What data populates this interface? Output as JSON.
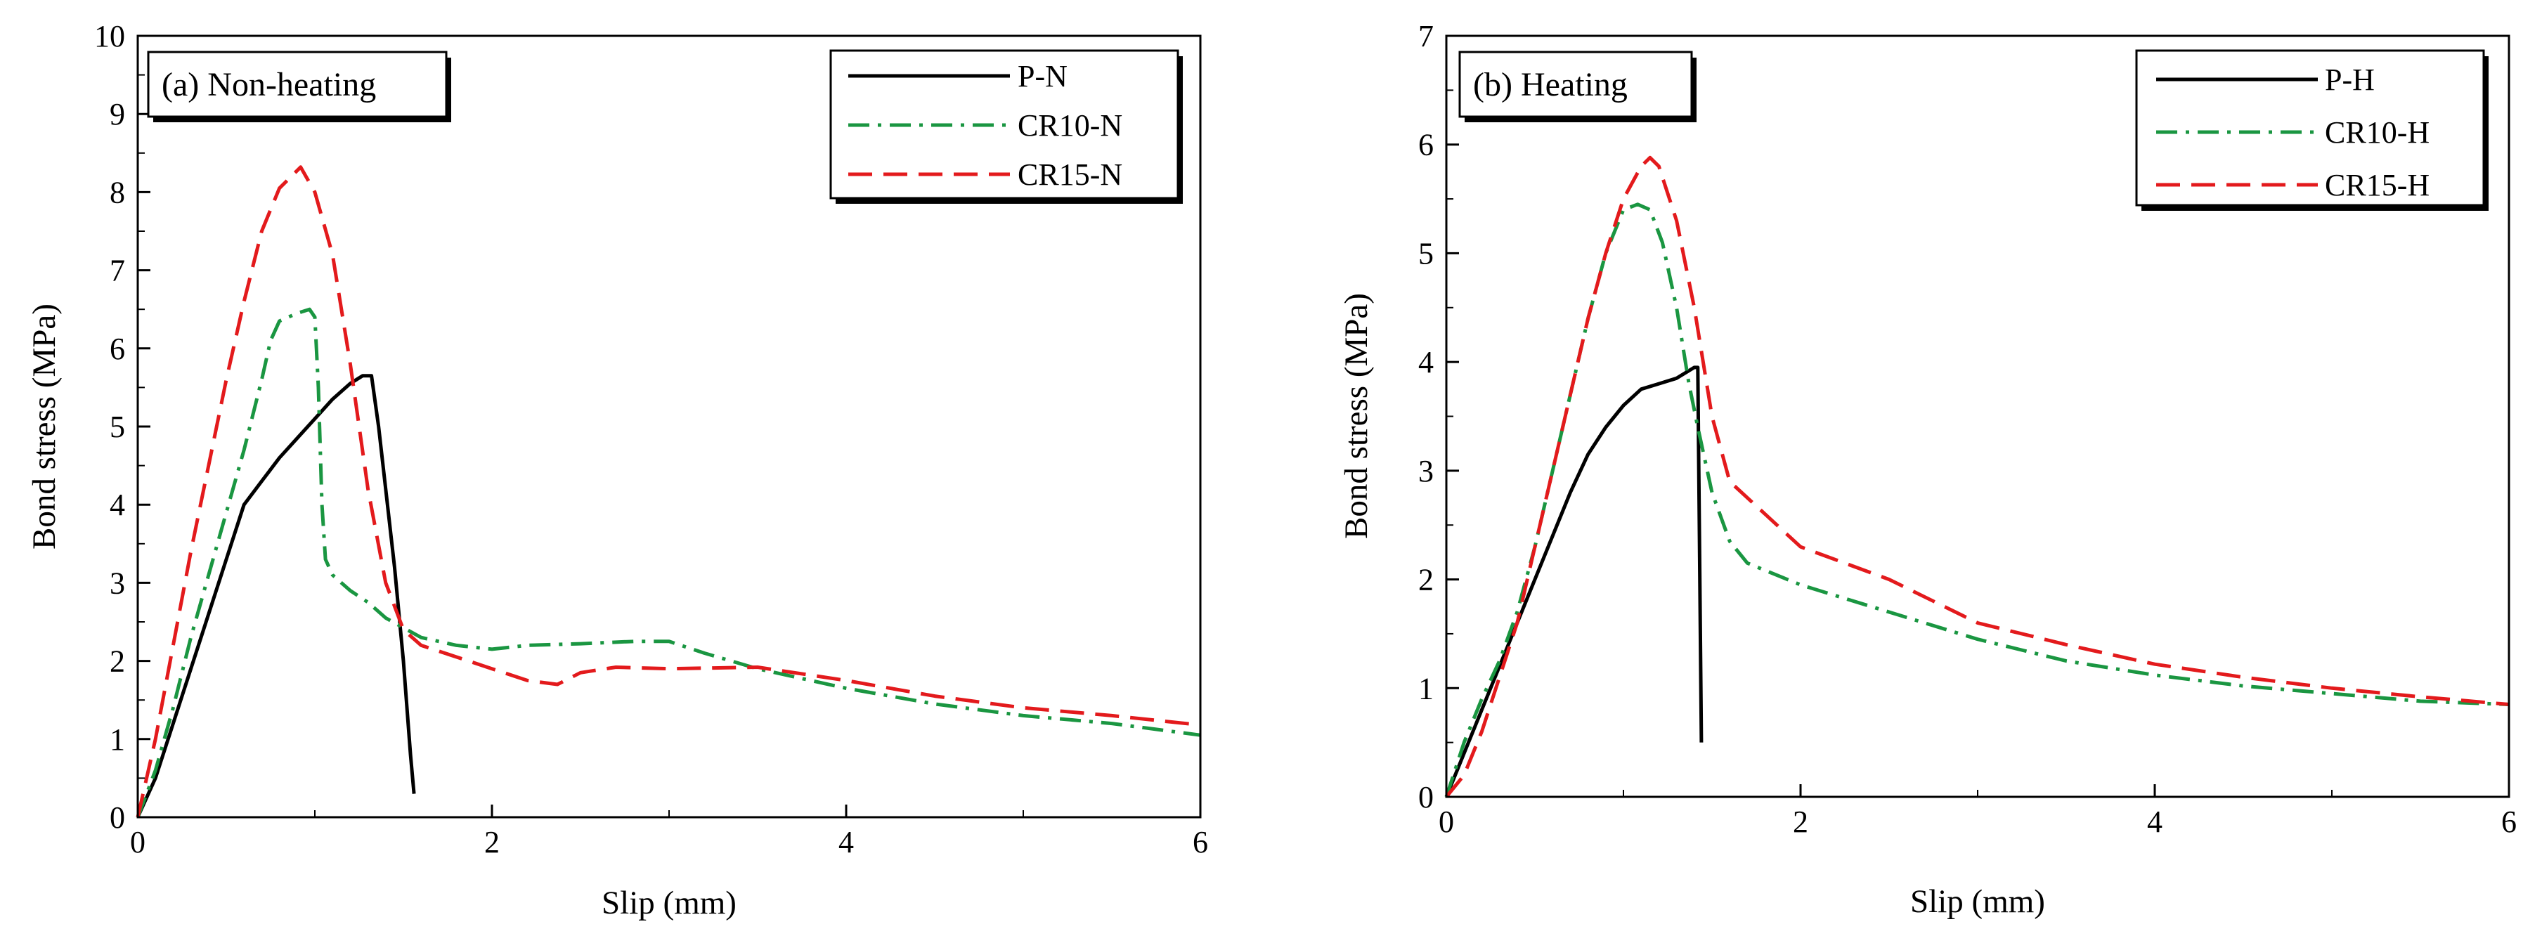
{
  "chart_data": [
    {
      "type": "line",
      "panel_label": "(a) Non-heating",
      "xlabel": "Slip (mm)",
      "ylabel": "Bond stress (MPa)",
      "xlim": [
        0,
        6
      ],
      "ylim": [
        0,
        10
      ],
      "xticks": [
        0,
        2,
        4,
        6
      ],
      "yticks": [
        0,
        1,
        2,
        3,
        4,
        5,
        6,
        7,
        8,
        9,
        10
      ],
      "legend_position": "top-right",
      "series": [
        {
          "name": "P-N",
          "color": "#000000",
          "style": "solid",
          "points": [
            [
              0,
              0
            ],
            [
              0.1,
              0.5
            ],
            [
              0.2,
              1.2
            ],
            [
              0.3,
              1.9
            ],
            [
              0.4,
              2.6
            ],
            [
              0.5,
              3.3
            ],
            [
              0.6,
              4.0
            ],
            [
              0.7,
              4.3
            ],
            [
              0.8,
              4.6
            ],
            [
              0.9,
              4.85
            ],
            [
              1.0,
              5.1
            ],
            [
              1.1,
              5.35
            ],
            [
              1.2,
              5.55
            ],
            [
              1.27,
              5.65
            ],
            [
              1.32,
              5.65
            ],
            [
              1.36,
              5.0
            ],
            [
              1.4,
              4.2
            ],
            [
              1.45,
              3.2
            ],
            [
              1.5,
              2.0
            ],
            [
              1.54,
              0.8
            ],
            [
              1.56,
              0.3
            ]
          ]
        },
        {
          "name": "CR10-N",
          "color": "#1a9641",
          "style": "dashdot",
          "points": [
            [
              0,
              0
            ],
            [
              0.1,
              0.6
            ],
            [
              0.2,
              1.4
            ],
            [
              0.3,
              2.3
            ],
            [
              0.4,
              3.1
            ],
            [
              0.5,
              3.9
            ],
            [
              0.6,
              4.7
            ],
            [
              0.7,
              5.6
            ],
            [
              0.75,
              6.1
            ],
            [
              0.8,
              6.35
            ],
            [
              0.9,
              6.45
            ],
            [
              0.97,
              6.5
            ],
            [
              1.0,
              6.4
            ],
            [
              1.02,
              5.5
            ],
            [
              1.04,
              4.0
            ],
            [
              1.06,
              3.3
            ],
            [
              1.1,
              3.1
            ],
            [
              1.2,
              2.9
            ],
            [
              1.3,
              2.75
            ],
            [
              1.4,
              2.55
            ],
            [
              1.6,
              2.3
            ],
            [
              1.8,
              2.2
            ],
            [
              2.0,
              2.15
            ],
            [
              2.2,
              2.2
            ],
            [
              2.5,
              2.22
            ],
            [
              2.8,
              2.25
            ],
            [
              3.0,
              2.25
            ],
            [
              3.2,
              2.1
            ],
            [
              3.5,
              1.9
            ],
            [
              4.0,
              1.65
            ],
            [
              4.5,
              1.45
            ],
            [
              5.0,
              1.3
            ],
            [
              5.5,
              1.2
            ],
            [
              6.0,
              1.05
            ]
          ]
        },
        {
          "name": "CR15-N",
          "color": "#e31a1c",
          "style": "dashed",
          "points": [
            [
              0,
              0
            ],
            [
              0.1,
              1.0
            ],
            [
              0.2,
              2.2
            ],
            [
              0.3,
              3.4
            ],
            [
              0.4,
              4.5
            ],
            [
              0.5,
              5.6
            ],
            [
              0.6,
              6.6
            ],
            [
              0.7,
              7.5
            ],
            [
              0.8,
              8.05
            ],
            [
              0.92,
              8.32
            ],
            [
              1.0,
              8.0
            ],
            [
              1.1,
              7.2
            ],
            [
              1.2,
              5.8
            ],
            [
              1.3,
              4.2
            ],
            [
              1.4,
              3.0
            ],
            [
              1.5,
              2.4
            ],
            [
              1.6,
              2.2
            ],
            [
              1.8,
              2.05
            ],
            [
              2.0,
              1.9
            ],
            [
              2.2,
              1.75
            ],
            [
              2.37,
              1.7
            ],
            [
              2.5,
              1.85
            ],
            [
              2.7,
              1.92
            ],
            [
              3.0,
              1.9
            ],
            [
              3.5,
              1.92
            ],
            [
              4.0,
              1.75
            ],
            [
              4.5,
              1.55
            ],
            [
              5.0,
              1.4
            ],
            [
              5.5,
              1.3
            ],
            [
              6.0,
              1.18
            ]
          ]
        }
      ]
    },
    {
      "type": "line",
      "panel_label": "(b) Heating",
      "xlabel": "Slip (mm)",
      "ylabel": "Bond stress (MPa)",
      "xlim": [
        0,
        6
      ],
      "ylim": [
        0,
        7
      ],
      "xticks": [
        0,
        2,
        4,
        6
      ],
      "yticks": [
        0,
        1,
        2,
        3,
        4,
        5,
        6,
        7
      ],
      "legend_position": "top-right",
      "series": [
        {
          "name": "P-H",
          "color": "#000000",
          "style": "solid",
          "points": [
            [
              0,
              0
            ],
            [
              0.1,
              0.4
            ],
            [
              0.2,
              0.8
            ],
            [
              0.3,
              1.2
            ],
            [
              0.4,
              1.6
            ],
            [
              0.5,
              2.0
            ],
            [
              0.6,
              2.4
            ],
            [
              0.7,
              2.8
            ],
            [
              0.8,
              3.15
            ],
            [
              0.9,
              3.4
            ],
            [
              1.0,
              3.6
            ],
            [
              1.1,
              3.75
            ],
            [
              1.2,
              3.8
            ],
            [
              1.3,
              3.85
            ],
            [
              1.4,
              3.95
            ],
            [
              1.42,
              3.95
            ],
            [
              1.43,
              2.2
            ],
            [
              1.44,
              0.5
            ]
          ]
        },
        {
          "name": "CR10-H",
          "color": "#1a9641",
          "style": "dashdot",
          "points": [
            [
              0,
              0
            ],
            [
              0.1,
              0.5
            ],
            [
              0.2,
              0.9
            ],
            [
              0.3,
              1.25
            ],
            [
              0.4,
              1.7
            ],
            [
              0.5,
              2.3
            ],
            [
              0.6,
              3.0
            ],
            [
              0.7,
              3.7
            ],
            [
              0.8,
              4.4
            ],
            [
              0.9,
              5.0
            ],
            [
              1.0,
              5.4
            ],
            [
              1.08,
              5.45
            ],
            [
              1.15,
              5.4
            ],
            [
              1.22,
              5.1
            ],
            [
              1.3,
              4.5
            ],
            [
              1.37,
              3.8
            ],
            [
              1.42,
              3.4
            ],
            [
              1.5,
              2.8
            ],
            [
              1.6,
              2.35
            ],
            [
              1.7,
              2.15
            ],
            [
              2.0,
              1.95
            ],
            [
              2.5,
              1.7
            ],
            [
              3.0,
              1.45
            ],
            [
              3.5,
              1.25
            ],
            [
              4.0,
              1.12
            ],
            [
              4.5,
              1.02
            ],
            [
              5.0,
              0.95
            ],
            [
              5.5,
              0.88
            ],
            [
              6.0,
              0.85
            ]
          ]
        },
        {
          "name": "CR15-H",
          "color": "#e31a1c",
          "style": "dashed",
          "points": [
            [
              0,
              0
            ],
            [
              0.1,
              0.2
            ],
            [
              0.2,
              0.6
            ],
            [
              0.3,
              1.1
            ],
            [
              0.4,
              1.6
            ],
            [
              0.5,
              2.3
            ],
            [
              0.6,
              3.0
            ],
            [
              0.7,
              3.7
            ],
            [
              0.8,
              4.4
            ],
            [
              0.9,
              5.0
            ],
            [
              1.0,
              5.5
            ],
            [
              1.1,
              5.8
            ],
            [
              1.15,
              5.88
            ],
            [
              1.2,
              5.8
            ],
            [
              1.3,
              5.3
            ],
            [
              1.4,
              4.5
            ],
            [
              1.5,
              3.5
            ],
            [
              1.6,
              2.9
            ],
            [
              1.8,
              2.6
            ],
            [
              2.0,
              2.3
            ],
            [
              2.5,
              2.0
            ],
            [
              3.0,
              1.6
            ],
            [
              3.5,
              1.4
            ],
            [
              4.0,
              1.22
            ],
            [
              4.5,
              1.1
            ],
            [
              5.0,
              1.0
            ],
            [
              5.5,
              0.92
            ],
            [
              6.0,
              0.85
            ]
          ]
        }
      ]
    }
  ]
}
